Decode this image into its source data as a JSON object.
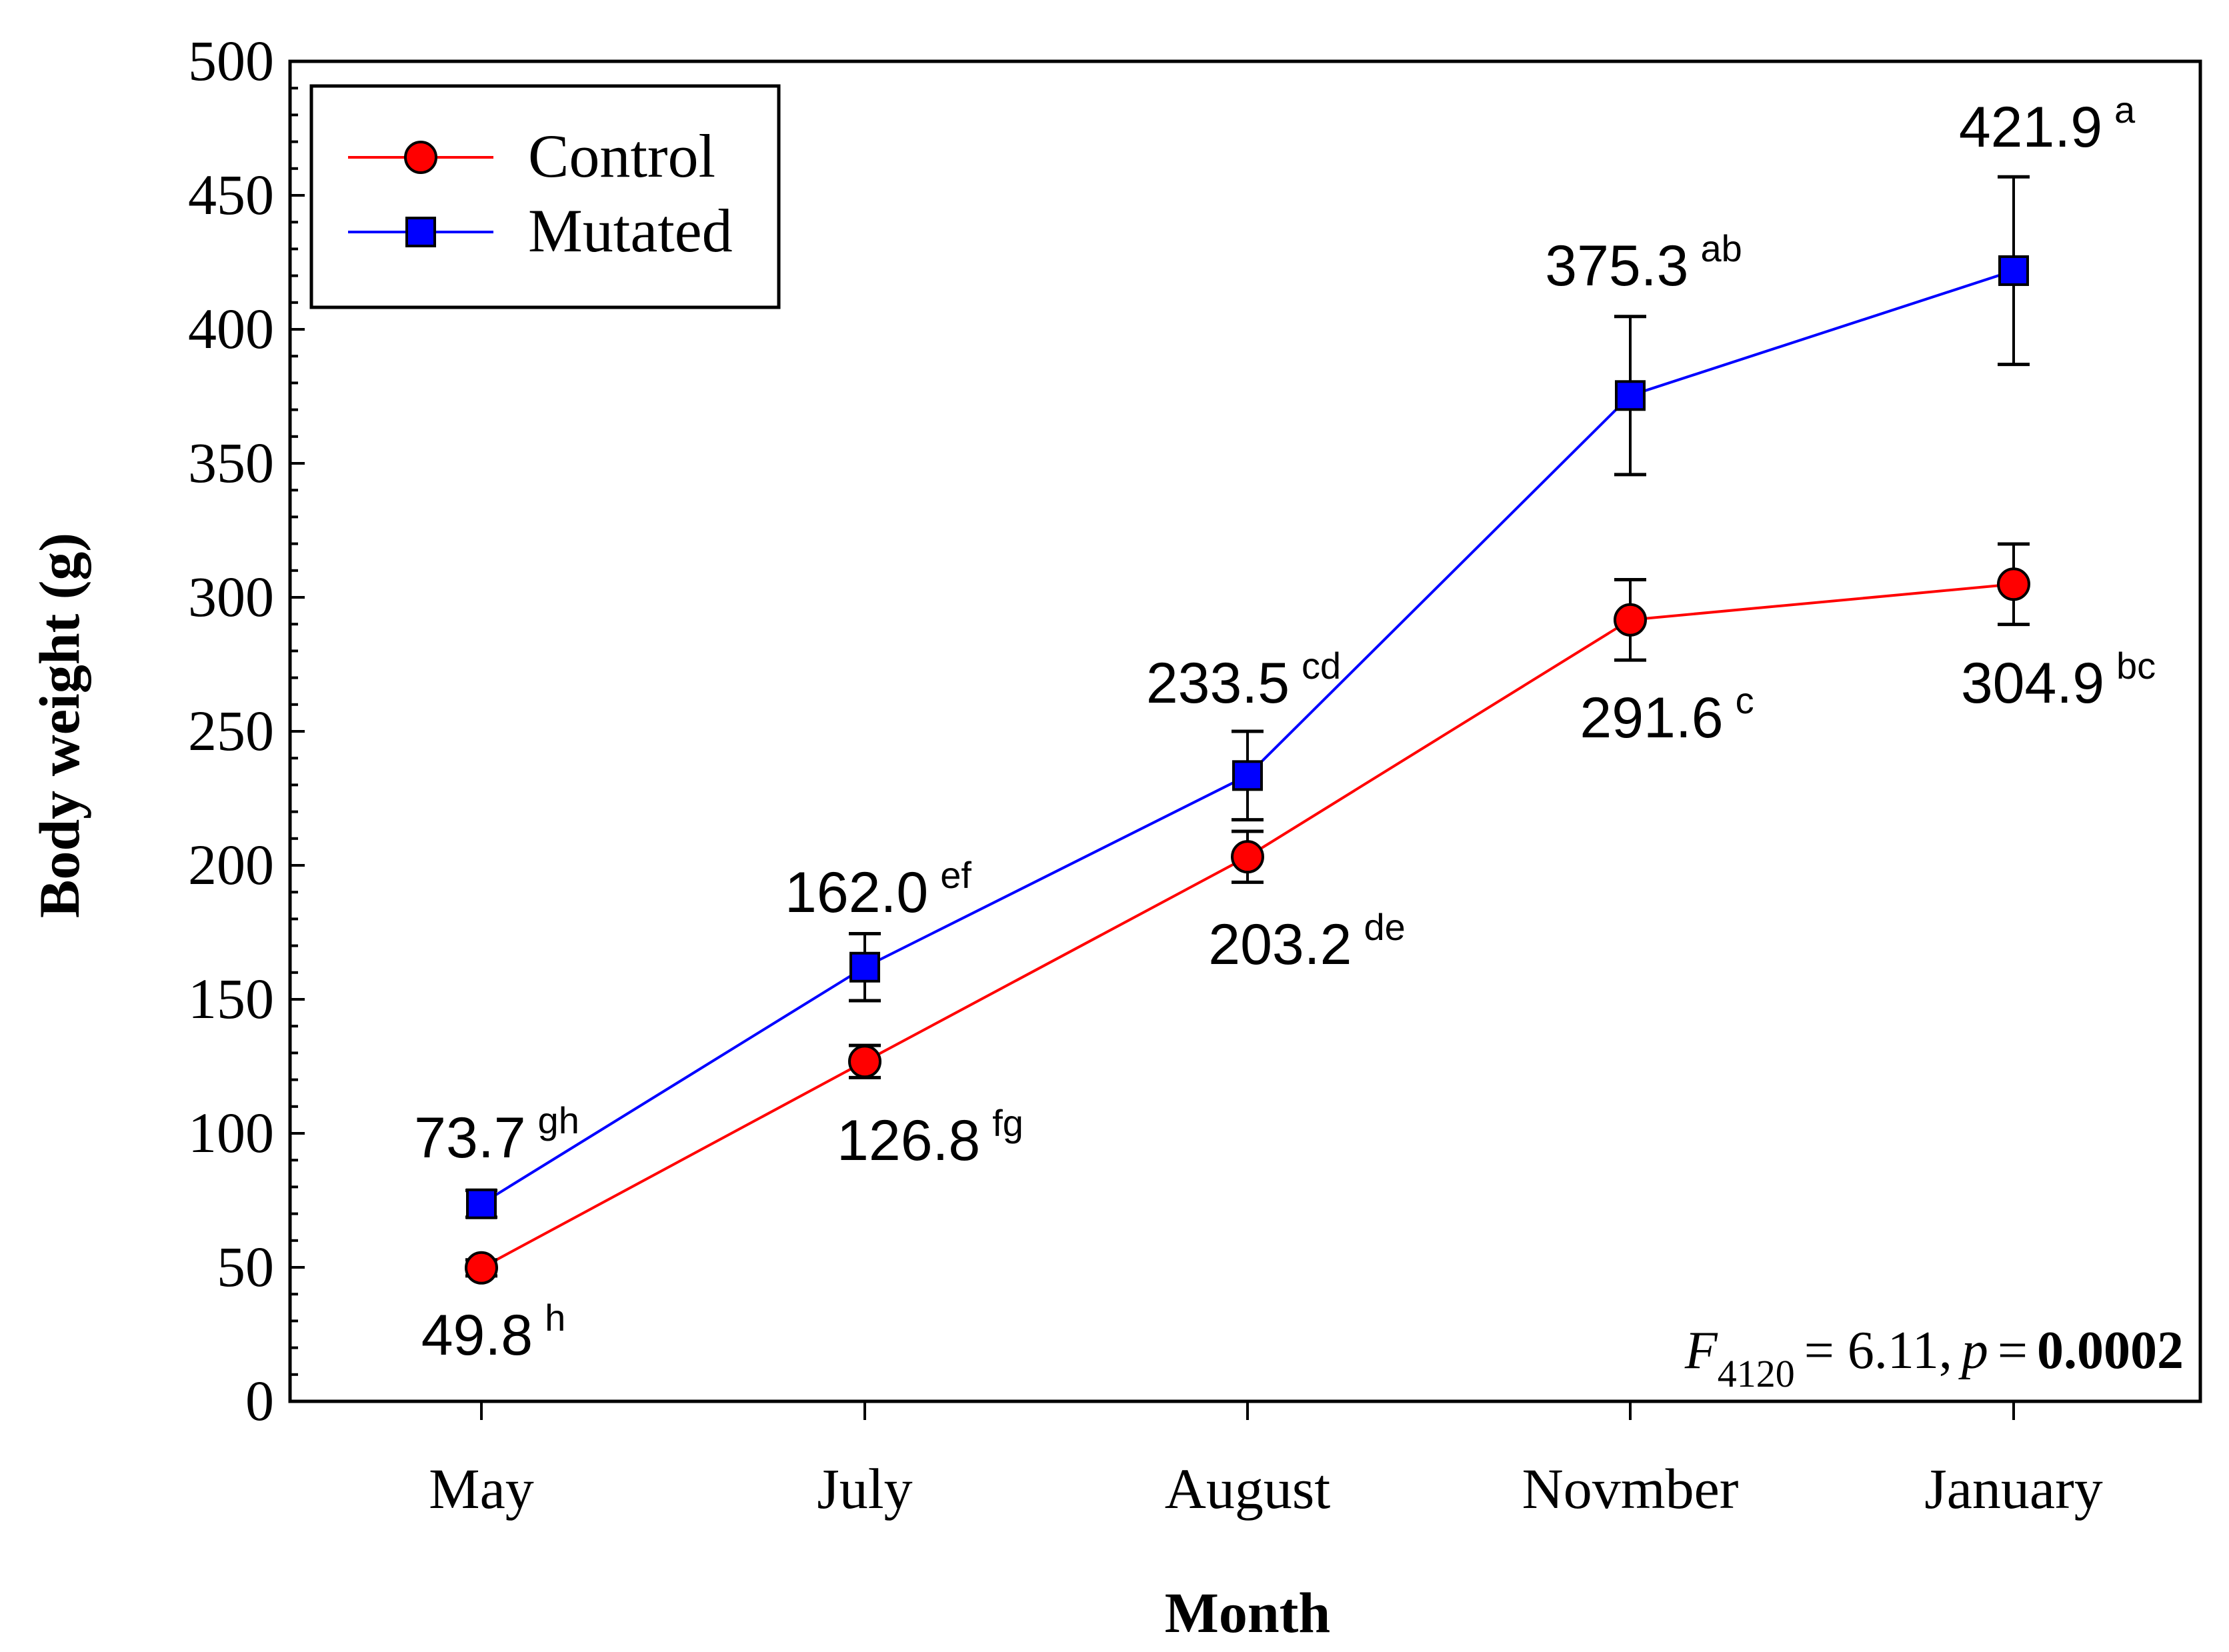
{
  "chart_data": {
    "type": "line",
    "xlabel": "Month",
    "ylabel": "Body weight (g)",
    "categories": [
      "May",
      "July",
      "August",
      "Novmber",
      "January"
    ],
    "ylim": [
      0,
      500
    ],
    "yticks": [
      "0",
      "50",
      "100",
      "150",
      "200",
      "250",
      "300",
      "350",
      "400",
      "450",
      "500"
    ],
    "grid": false,
    "legend": "top-left",
    "series": [
      {
        "name": "Control",
        "color": "#ff0000",
        "marker": "circle",
        "values": [
          49.8,
          126.8,
          203.2,
          291.6,
          304.9
        ],
        "errors": [
          3,
          6,
          9.5,
          15,
          15
        ],
        "labels": [
          "49.8",
          "126.8",
          "203.2",
          "291.6",
          "304.9"
        ],
        "letters": [
          "h",
          "fg",
          "de",
          "c",
          "bc"
        ]
      },
      {
        "name": "Mutated",
        "color": "#0000ff",
        "marker": "square",
        "values": [
          73.7,
          162.0,
          233.5,
          375.3,
          421.9
        ],
        "errors": [
          5,
          12.5,
          16.5,
          29.5,
          35
        ],
        "labels": [
          "73.7",
          "162.0",
          "233.5",
          "375.3",
          "421.9"
        ],
        "letters": [
          "gh",
          "ef",
          "cd",
          "ab",
          "a"
        ]
      }
    ],
    "annotation": {
      "stat": "F",
      "df": "4120",
      "f_text": "= 6.11,",
      "p": "p",
      "p_eq": "=",
      "p_value": "0.0002"
    }
  }
}
